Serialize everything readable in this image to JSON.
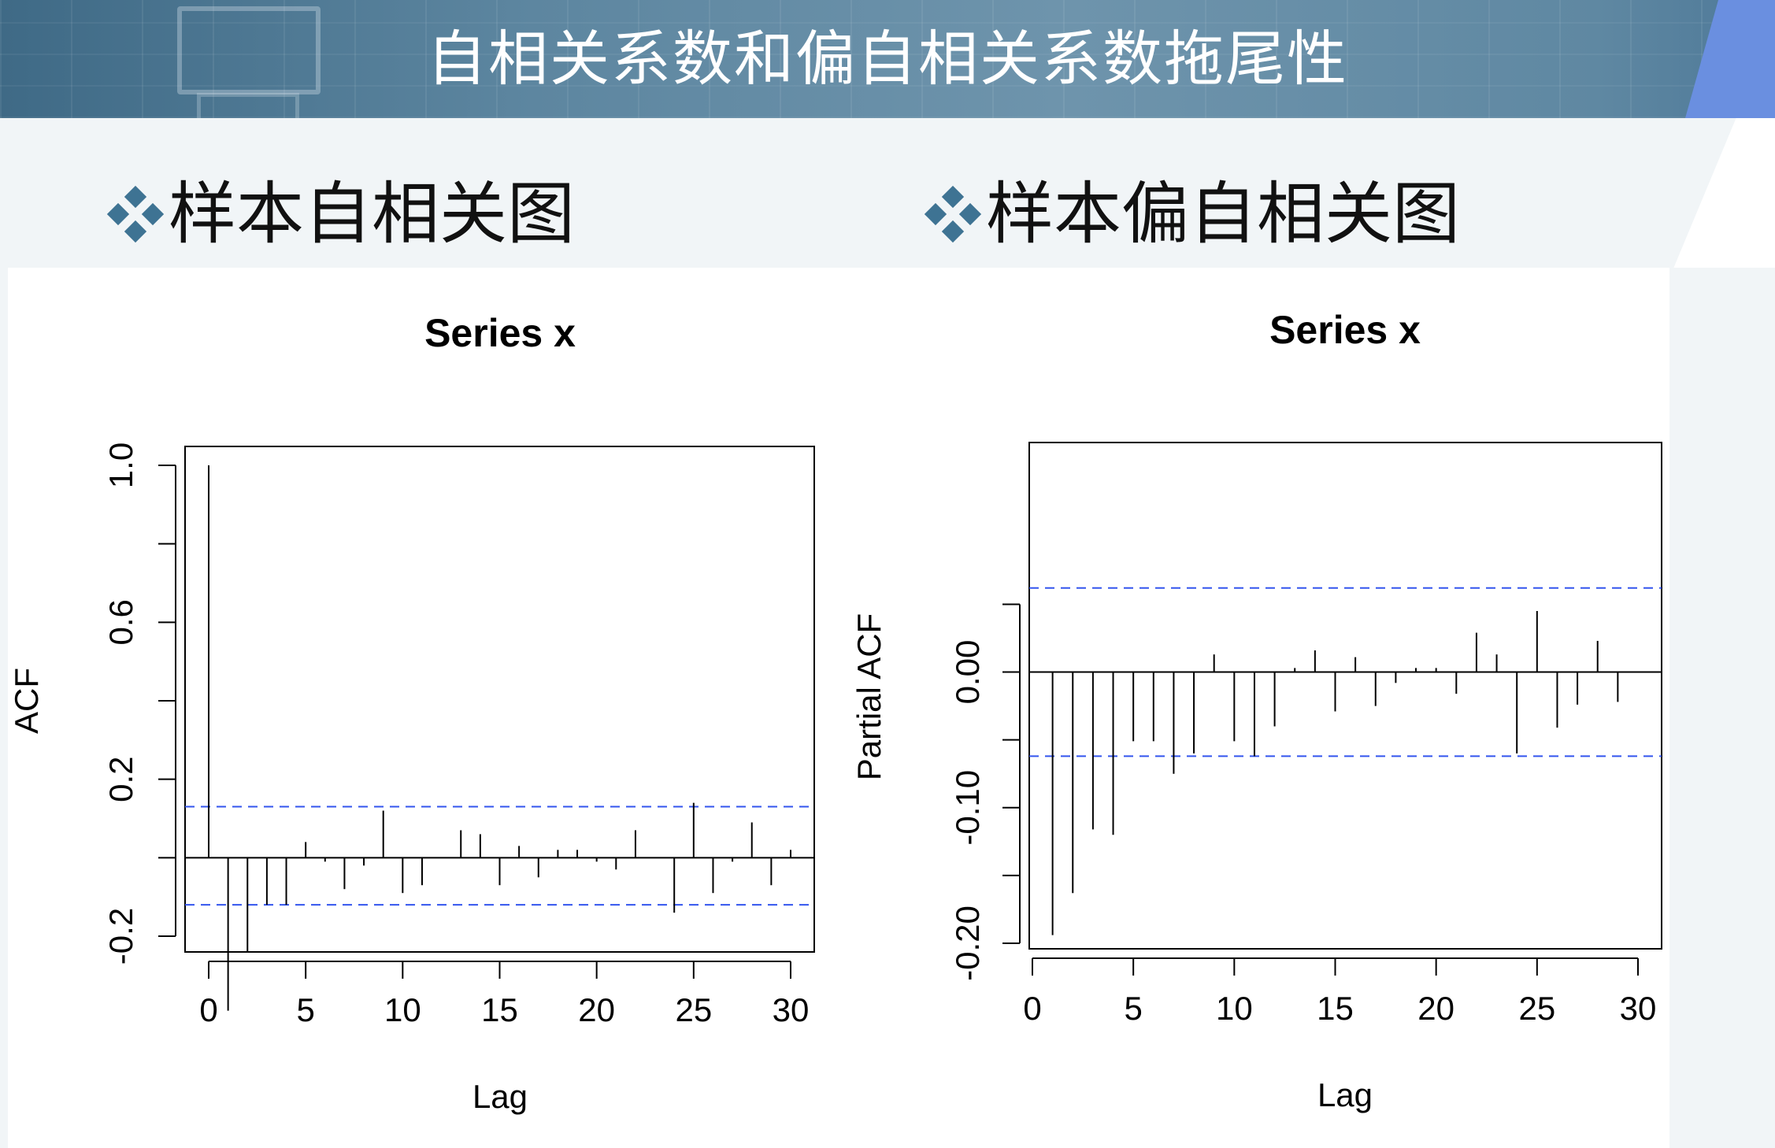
{
  "title": "自相关系数和偏自相关系数拖尾性",
  "acf_label": "样本自相关图",
  "pacf_label": "样本偏自相关图",
  "accent": "#3e7393",
  "chart_data": [
    {
      "type": "bar",
      "title": "Series  x",
      "xlabel": "Lag",
      "ylabel": "ACF",
      "xlim": [
        0,
        30
      ],
      "ylim": [
        -0.2,
        1.0
      ],
      "xticks": [
        "0",
        "5",
        "10",
        "15",
        "20",
        "25",
        "30"
      ],
      "yticks": [
        "-0.2",
        "0.2",
        "0.6",
        "1.0"
      ],
      "yticks_minor": [
        -0.2,
        0.0,
        0.2,
        0.4,
        0.6,
        0.8,
        1.0
      ],
      "confidence_band": [
        -0.12,
        0.13
      ],
      "lags": [
        0,
        1,
        2,
        3,
        4,
        5,
        6,
        7,
        8,
        9,
        10,
        11,
        12,
        13,
        14,
        15,
        16,
        17,
        18,
        19,
        20,
        21,
        22,
        23,
        24,
        25,
        26,
        27,
        28,
        29,
        30
      ],
      "values": [
        1.0,
        -0.39,
        -0.24,
        -0.12,
        -0.12,
        0.04,
        -0.01,
        -0.08,
        -0.02,
        0.12,
        -0.09,
        -0.07,
        0.0,
        0.07,
        0.06,
        -0.07,
        0.03,
        -0.05,
        0.02,
        0.02,
        -0.01,
        -0.03,
        0.07,
        0.0,
        -0.14,
        0.14,
        -0.09,
        -0.01,
        0.09,
        -0.07,
        0.02
      ]
    },
    {
      "type": "bar",
      "title": "Series  x",
      "xlabel": "Lag",
      "ylabel": "Partial ACF",
      "xlim": [
        0,
        30
      ],
      "ylim": [
        -0.2,
        0.07
      ],
      "xticks": [
        "0",
        "5",
        "10",
        "15",
        "20",
        "25",
        "30"
      ],
      "yticks": [
        "-0.20",
        "-0.10",
        "0.00"
      ],
      "yticks_minor": [
        -0.2,
        -0.15,
        -0.1,
        -0.05,
        0.0,
        0.05
      ],
      "confidence_band": [
        -0.062,
        0.062
      ],
      "lags": [
        1,
        2,
        3,
        4,
        5,
        6,
        7,
        8,
        9,
        10,
        11,
        12,
        13,
        14,
        15,
        16,
        17,
        18,
        19,
        20,
        21,
        22,
        23,
        24,
        25,
        26,
        27,
        28,
        29,
        30
      ],
      "values": [
        -0.194,
        -0.163,
        -0.116,
        -0.12,
        -0.051,
        -0.051,
        -0.075,
        -0.06,
        0.013,
        -0.051,
        -0.062,
        -0.04,
        0.003,
        0.016,
        -0.029,
        0.011,
        -0.025,
        -0.008,
        0.003,
        0.003,
        -0.016,
        0.029,
        0.013,
        -0.06,
        0.045,
        -0.041,
        -0.024,
        0.023,
        -0.022,
        0.0
      ]
    }
  ]
}
